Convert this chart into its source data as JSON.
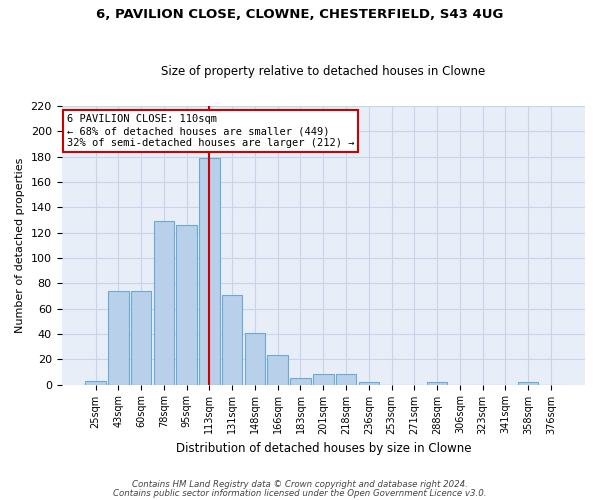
{
  "title1": "6, PAVILION CLOSE, CLOWNE, CHESTERFIELD, S43 4UG",
  "title2": "Size of property relative to detached houses in Clowne",
  "xlabel": "Distribution of detached houses by size in Clowne",
  "ylabel": "Number of detached properties",
  "footer1": "Contains HM Land Registry data © Crown copyright and database right 2024.",
  "footer2": "Contains public sector information licensed under the Open Government Licence v3.0.",
  "categories": [
    "25sqm",
    "43sqm",
    "60sqm",
    "78sqm",
    "95sqm",
    "113sqm",
    "131sqm",
    "148sqm",
    "166sqm",
    "183sqm",
    "201sqm",
    "218sqm",
    "236sqm",
    "253sqm",
    "271sqm",
    "288sqm",
    "306sqm",
    "323sqm",
    "341sqm",
    "358sqm",
    "376sqm"
  ],
  "bar_values": [
    3,
    74,
    74,
    129,
    126,
    179,
    71,
    41,
    23,
    5,
    8,
    8,
    2,
    0,
    0,
    2,
    0,
    0,
    0,
    2,
    0
  ],
  "bar_color": "#b8d0ea",
  "bar_edge_color": "#6aaad4",
  "grid_color": "#c8d4e8",
  "background_color": "#e8eef8",
  "vline_bin_index": 5,
  "annotation_line1": "6 PAVILION CLOSE: 110sqm",
  "annotation_line2": "← 68% of detached houses are smaller (449)",
  "annotation_line3": "32% of semi-detached houses are larger (212) →",
  "annotation_box_color": "#ffffff",
  "annotation_box_edge": "#cc0000",
  "vline_color": "#cc0000",
  "ylim": [
    0,
    220
  ],
  "yticks": [
    0,
    20,
    40,
    60,
    80,
    100,
    120,
    140,
    160,
    180,
    200,
    220
  ]
}
